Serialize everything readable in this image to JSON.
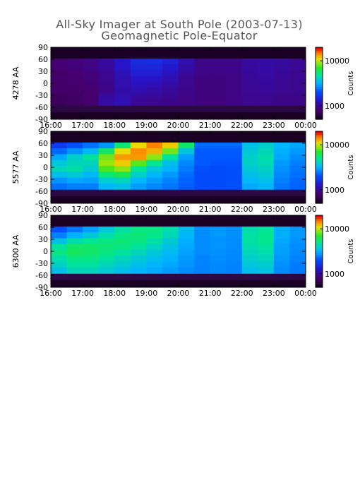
{
  "chart_data": [
    {
      "type": "heatmap",
      "title": "All-Sky Imager at South Pole (2003-07-13)",
      "subtitle": "Geomagnetic Pole-Equator",
      "ylabel": "4278 AA",
      "xlabel": "",
      "x_ticks": [
        "16:00",
        "17:00",
        "18:00",
        "19:00",
        "20:00",
        "21:00",
        "22:00",
        "23:00",
        "00:00"
      ],
      "y_ticks": [
        90,
        60,
        30,
        0,
        -30,
        -60,
        -90
      ],
      "ylim": [
        -90,
        90
      ],
      "colorbar": {
        "label": "Counts",
        "scale": "log",
        "ticks": [
          10000,
          1000
        ],
        "range": [
          500,
          20000
        ]
      },
      "data_band": [
        -55,
        62
      ],
      "x": [
        16,
        16.5,
        17,
        17.5,
        18,
        18.5,
        19,
        19.5,
        20,
        20.5,
        21,
        21.5,
        22,
        22.5,
        23,
        23.5,
        24
      ],
      "y": [
        60,
        45,
        30,
        15,
        0,
        -15,
        -30,
        -45
      ],
      "z": [
        [
          800,
          800,
          850,
          900,
          1100,
          1400,
          1600,
          1500,
          1300,
          900,
          900,
          900,
          900,
          1100,
          1000,
          1000,
          900
        ],
        [
          800,
          800,
          850,
          900,
          1100,
          1400,
          1500,
          1400,
          1200,
          900,
          900,
          900,
          900,
          1100,
          1000,
          1000,
          900
        ],
        [
          750,
          750,
          800,
          850,
          1000,
          1300,
          1400,
          1300,
          1100,
          900,
          850,
          900,
          900,
          1050,
          1000,
          950,
          900
        ],
        [
          750,
          750,
          800,
          850,
          1000,
          1200,
          1300,
          1200,
          1000,
          850,
          850,
          850,
          900,
          1050,
          950,
          950,
          900
        ],
        [
          750,
          750,
          800,
          800,
          1000,
          1200,
          1200,
          1100,
          1000,
          850,
          850,
          850,
          900,
          1000,
          950,
          950,
          900
        ],
        [
          750,
          750,
          750,
          800,
          1000,
          1100,
          1100,
          1000,
          950,
          850,
          850,
          850,
          900,
          1000,
          950,
          950,
          900
        ],
        [
          700,
          700,
          750,
          800,
          1200,
          1000,
          1000,
          950,
          900,
          850,
          850,
          850,
          900,
          950,
          900,
          900,
          900
        ],
        [
          700,
          700,
          750,
          800,
          1300,
          950,
          950,
          900,
          900,
          850,
          850,
          850,
          900,
          950,
          900,
          900,
          900
        ]
      ]
    },
    {
      "type": "heatmap",
      "ylabel": "5577 AA",
      "xlabel": "",
      "x_ticks": [
        "16:00",
        "17:00",
        "18:00",
        "19:00",
        "20:00",
        "21:00",
        "22:00",
        "23:00",
        "00:00"
      ],
      "y_ticks": [
        90,
        60,
        30,
        0,
        -30,
        -60,
        -90
      ],
      "ylim": [
        -90,
        90
      ],
      "colorbar": {
        "label": "Counts",
        "scale": "log",
        "ticks": [
          10000,
          1000
        ],
        "range": [
          500,
          20000
        ]
      },
      "data_band": [
        -55,
        62
      ],
      "x": [
        16,
        16.5,
        17,
        17.5,
        18,
        18.5,
        19,
        19.5,
        20,
        20.5,
        21,
        21.5,
        22,
        22.5,
        23,
        23.5,
        24
      ],
      "y": [
        60,
        45,
        30,
        15,
        0,
        -15,
        -30,
        -45
      ],
      "z": [
        [
          1600,
          1800,
          2200,
          2500,
          3000,
          8000,
          15000,
          15000,
          9000,
          2500,
          2000,
          2500,
          2000,
          5000,
          3000,
          3500,
          2500
        ],
        [
          2000,
          2500,
          3000,
          3500,
          8000,
          15000,
          14000,
          12000,
          5000,
          2200,
          2000,
          2200,
          2000,
          5500,
          3000,
          3200,
          2400
        ],
        [
          2500,
          3500,
          4500,
          5000,
          12000,
          16000,
          12000,
          6000,
          3500,
          2200,
          2000,
          2200,
          2000,
          6000,
          3000,
          3000,
          2300
        ],
        [
          3000,
          4500,
          4000,
          4500,
          14000,
          10000,
          6000,
          4000,
          3000,
          2200,
          2000,
          2100,
          2000,
          6000,
          2800,
          2800,
          2200
        ],
        [
          3500,
          5000,
          4200,
          3500,
          12000,
          6000,
          4000,
          3500,
          2800,
          2100,
          1900,
          2000,
          2000,
          5500,
          2700,
          2700,
          2100
        ],
        [
          3000,
          4000,
          3500,
          3000,
          8000,
          4500,
          3500,
          3000,
          2600,
          2000,
          1900,
          2000,
          2000,
          5000,
          2600,
          2600,
          2100
        ],
        [
          2500,
          3000,
          3000,
          2800,
          5000,
          3500,
          3000,
          2700,
          2400,
          2000,
          1900,
          2000,
          2000,
          4500,
          2500,
          2500,
          2000
        ],
        [
          2200,
          2500,
          2500,
          2500,
          4000,
          3000,
          2700,
          2500,
          2300,
          2000,
          1900,
          2000,
          2000,
          4000,
          2400,
          2400,
          2000
        ]
      ]
    },
    {
      "type": "heatmap",
      "ylabel": "6300 AA",
      "xlabel": "",
      "x_ticks": [
        "16:00",
        "17:00",
        "18:00",
        "19:00",
        "20:00",
        "21:00",
        "22:00",
        "23:00",
        "00:00"
      ],
      "y_ticks": [
        90,
        60,
        30,
        0,
        -30,
        -60,
        -90
      ],
      "ylim": [
        -90,
        90
      ],
      "colorbar": {
        "label": "Counts",
        "scale": "log",
        "ticks": [
          10000,
          1000
        ],
        "range": [
          500,
          20000
        ]
      },
      "data_band": [
        -55,
        62
      ],
      "x": [
        16,
        16.5,
        17,
        17.5,
        18,
        18.5,
        19,
        19.5,
        20,
        20.5,
        21,
        21.5,
        22,
        22.5,
        23,
        23.5,
        24
      ],
      "y": [
        60,
        45,
        30,
        15,
        0,
        -15,
        -30,
        -45
      ],
      "z": [
        [
          1800,
          2200,
          2600,
          3200,
          4200,
          5000,
          5500,
          5000,
          4000,
          2800,
          2600,
          3000,
          2400,
          6500,
          3200,
          3000,
          2600
        ],
        [
          2200,
          2800,
          3500,
          4000,
          5000,
          5500,
          5500,
          4800,
          3800,
          2700,
          2600,
          3000,
          2400,
          7000,
          3200,
          3000,
          2600
        ],
        [
          3000,
          4000,
          5000,
          5000,
          5500,
          5500,
          5000,
          4200,
          3500,
          2700,
          2600,
          2900,
          2400,
          7000,
          3100,
          2900,
          2500
        ],
        [
          4000,
          5500,
          6000,
          5500,
          5500,
          5000,
          4500,
          3800,
          3300,
          2700,
          2600,
          2900,
          2400,
          6500,
          3000,
          2800,
          2500
        ],
        [
          4500,
          6000,
          6000,
          5500,
          5000,
          4500,
          4000,
          3500,
          3100,
          2700,
          2600,
          2800,
          2400,
          6000,
          3000,
          2800,
          2400
        ],
        [
          4000,
          5000,
          5500,
          5000,
          4500,
          4000,
          3600,
          3300,
          3000,
          2600,
          2500,
          2800,
          2400,
          5500,
          2900,
          2700,
          2400
        ],
        [
          3500,
          4500,
          5000,
          4500,
          4000,
          3600,
          3300,
          3100,
          2900,
          2600,
          2500,
          2700,
          2400,
          5000,
          2800,
          2600,
          2300
        ],
        [
          3000,
          4000,
          4500,
          4000,
          3600,
          3300,
          3100,
          2900,
          2800,
          2500,
          2500,
          2700,
          2400,
          4500,
          2700,
          2600,
          2300
        ]
      ]
    }
  ]
}
